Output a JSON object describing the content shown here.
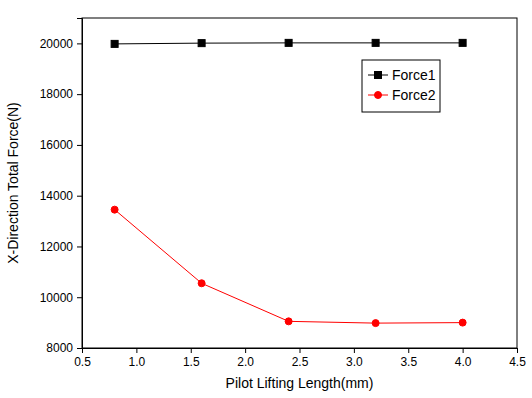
{
  "chart_data": {
    "type": "line",
    "x_label": "Pilot Lifting Length(mm)",
    "y_label": "X-Direction Total Force(N)",
    "x": [
      0.8,
      1.6,
      2.4,
      3.2,
      4.0
    ],
    "series": [
      {
        "name": "Force1",
        "color": "#000000",
        "marker": "square",
        "line_style": "solid",
        "values": [
          19980,
          20010,
          20020,
          20020,
          20020
        ]
      },
      {
        "name": "Force2",
        "color": "#ff0000",
        "marker": "circle",
        "line_style": "solid",
        "values": [
          13450,
          10550,
          9050,
          8980,
          9000
        ]
      }
    ],
    "xlim": [
      0.5,
      4.5
    ],
    "xticks": [
      0.5,
      {
        "value": 1,
        "label": "1.0"
      },
      1.5,
      {
        "value": 2,
        "label": "2.0"
      },
      2.5,
      {
        "value": 3,
        "label": "3.0"
      },
      3.5,
      {
        "value": 4,
        "label": "4.0"
      },
      4.5
    ],
    "ylim": [
      8000,
      21000
    ],
    "yticks": [
      8000,
      10000,
      12000,
      14000,
      16000,
      18000,
      20000
    ],
    "grid": false,
    "legend": "upper right"
  }
}
